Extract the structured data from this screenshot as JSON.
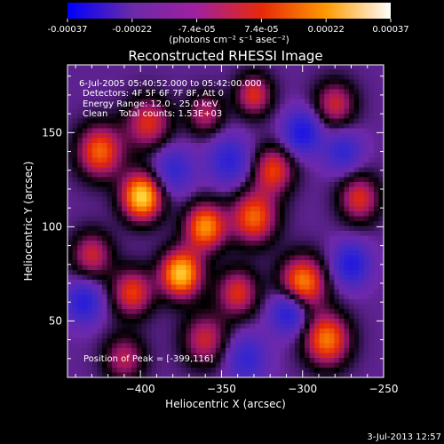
{
  "chart_data": {
    "type": "heatmap",
    "title": "Reconstructed RHESSI Image",
    "colorbar": {
      "min": -0.00037,
      "max": 0.00037,
      "ticks": [
        "-0.00037",
        "-0.00022",
        "-7.4e-05",
        "7.4e-05",
        "0.00022",
        "0.00037"
      ],
      "label": "(photons cm⁻² s⁻¹ asec⁻²)",
      "colors": [
        "#0000ff",
        "#6a2aa8",
        "#a020a0",
        "#e8280a",
        "#ff9a00",
        "#ffffff"
      ]
    },
    "xlabel": "Heliocentric X (arcsec)",
    "ylabel": "Heliocentric Y (arcsec)",
    "xlim": [
      -445,
      -250
    ],
    "ylim": [
      20,
      186
    ],
    "xticks": [
      -400,
      -350,
      -300,
      -250
    ],
    "yticks": [
      50,
      100,
      150
    ],
    "annotations": [
      "6-Jul-2005 05:40:52.000 to 05:42:00.000",
      "Detectors: 4F 5F 6F 7F 8F, Att 0",
      "Energy Range: 12.0 - 25.0 keV",
      "Clean    Total counts: 1.53E+03"
    ],
    "peak_label": "Position of Peak = [-399,116]",
    "peak": [
      -399,
      116
    ],
    "blobs": [
      {
        "x": -399,
        "y": 116,
        "amp": 1.0,
        "s": 9
      },
      {
        "x": -375,
        "y": 75,
        "amp": 0.95,
        "s": 9
      },
      {
        "x": -360,
        "y": 100,
        "amp": 0.8,
        "s": 9
      },
      {
        "x": -425,
        "y": 140,
        "amp": 0.7,
        "s": 10
      },
      {
        "x": -395,
        "y": 155,
        "amp": 0.55,
        "s": 10
      },
      {
        "x": -330,
        "y": 105,
        "amp": 0.7,
        "s": 10
      },
      {
        "x": -318,
        "y": 130,
        "amp": 0.6,
        "s": 9
      },
      {
        "x": -300,
        "y": 70,
        "amp": 0.8,
        "s": 10
      },
      {
        "x": -285,
        "y": 40,
        "amp": 0.75,
        "s": 10
      },
      {
        "x": -265,
        "y": 115,
        "amp": 0.55,
        "s": 9
      },
      {
        "x": -340,
        "y": 65,
        "amp": 0.55,
        "s": 9
      },
      {
        "x": -405,
        "y": 65,
        "amp": 0.6,
        "s": 9
      },
      {
        "x": -360,
        "y": 40,
        "amp": 0.5,
        "s": 10
      },
      {
        "x": -430,
        "y": 85,
        "amp": 0.5,
        "s": 9
      },
      {
        "x": -330,
        "y": 170,
        "amp": 0.55,
        "s": 8
      },
      {
        "x": -360,
        "y": 160,
        "amp": 0.45,
        "s": 8
      },
      {
        "x": -280,
        "y": 165,
        "amp": 0.5,
        "s": 9
      },
      {
        "x": -410,
        "y": 30,
        "amp": 0.45,
        "s": 9
      },
      {
        "x": -300,
        "y": 150,
        "amp": -0.6,
        "s": 8
      },
      {
        "x": -308,
        "y": 55,
        "amp": -0.6,
        "s": 8
      },
      {
        "x": -435,
        "y": 60,
        "amp": -0.5,
        "s": 8
      },
      {
        "x": -270,
        "y": 80,
        "amp": -0.55,
        "s": 8
      },
      {
        "x": -380,
        "y": 130,
        "amp": -0.4,
        "s": 9
      },
      {
        "x": -345,
        "y": 135,
        "amp": -0.45,
        "s": 9
      },
      {
        "x": -275,
        "y": 140,
        "amp": -0.4,
        "s": 8
      },
      {
        "x": -335,
        "y": 30,
        "amp": -0.4,
        "s": 9
      }
    ]
  },
  "footer": {
    "timestamp": "3-Jul-2013 12:57"
  }
}
